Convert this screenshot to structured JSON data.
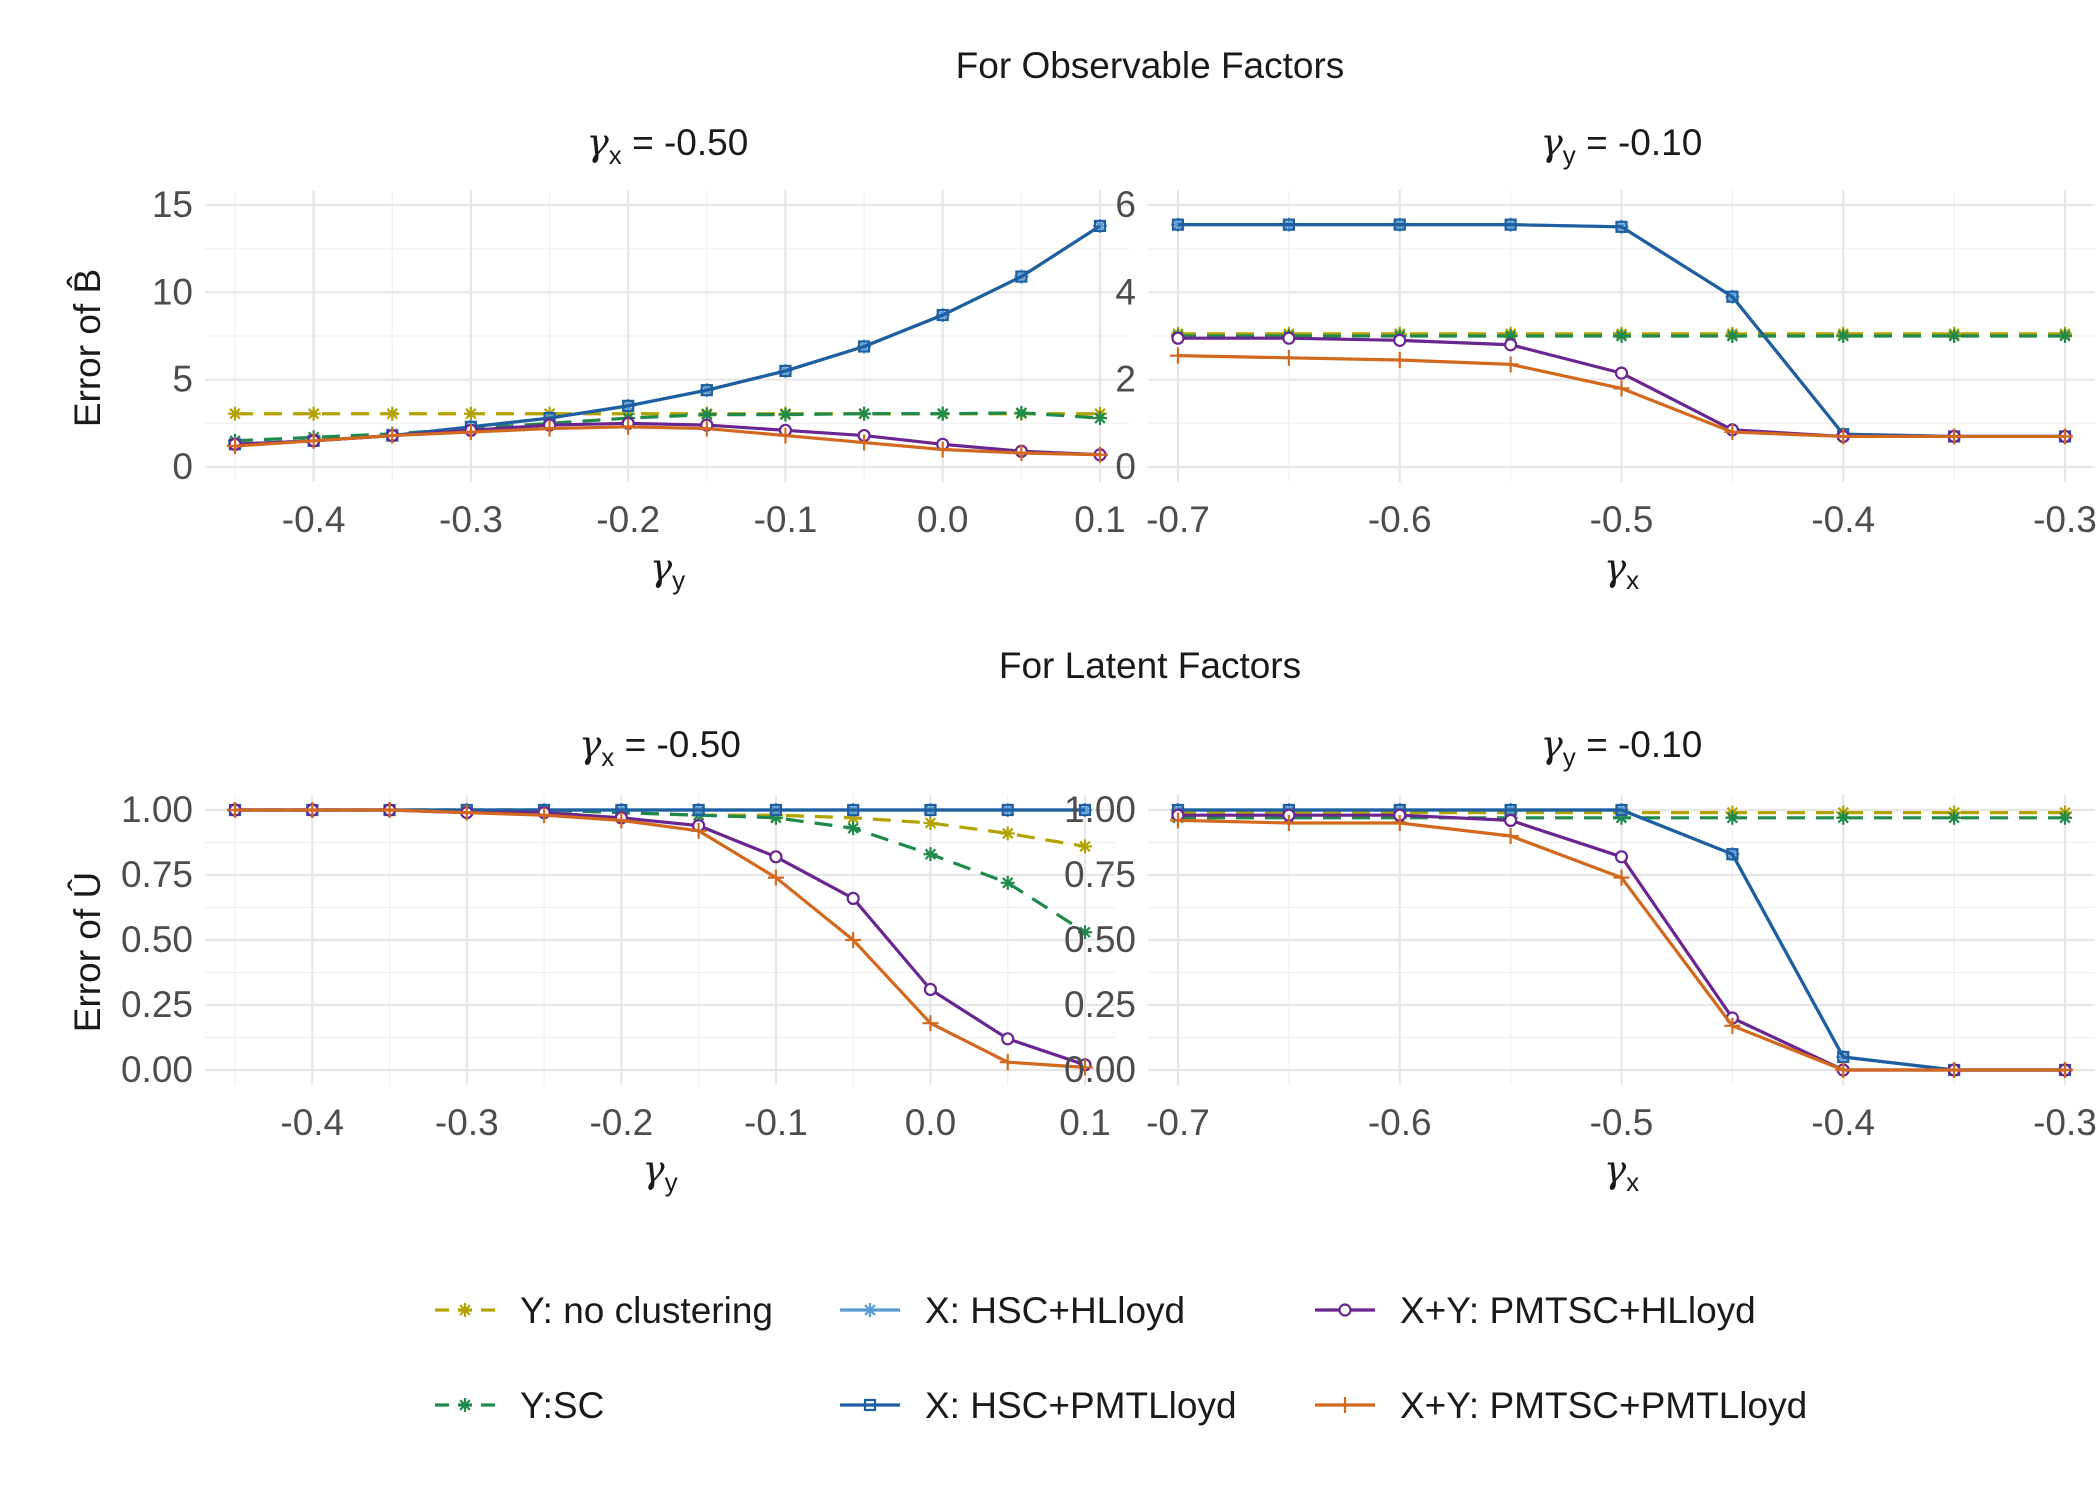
{
  "sections": [
    {
      "title": "For Observable Factors"
    },
    {
      "title": "For Latent Factors"
    }
  ],
  "colors": {
    "Y: no clustering": "#b2a300",
    "Y:SC": "#1f8a4c",
    "X: HSC+HLloyd": "#5b9bd5",
    "X: HSC+PMTLloyd": "#1f5fa0",
    "X+Y: PMTSC+HLloyd": "#6a2690",
    "X+Y: PMTSC+PMTLloyd": "#d2691e"
  },
  "legend": [
    {
      "label": "Y: no clustering",
      "dash": true,
      "marker": "asterisk"
    },
    {
      "label": "Y:SC",
      "dash": true,
      "marker": "asterisk"
    },
    {
      "label": "X: HSC+HLloyd",
      "dash": false,
      "marker": "asterisk"
    },
    {
      "label": "X: HSC+PMTLloyd",
      "dash": false,
      "marker": "square"
    },
    {
      "label": "X+Y: PMTSC+HLloyd",
      "dash": false,
      "marker": "circle"
    },
    {
      "label": "X+Y: PMTSC+PMTLloyd",
      "dash": false,
      "marker": "plus"
    }
  ],
  "chart_data": [
    {
      "type": "line",
      "title_symbol": "γ",
      "title_sub": "x",
      "title_value": "= -0.50",
      "xlabel_symbol": "γ",
      "xlabel_sub": "y",
      "ylabel": "Error of B̂",
      "x": [
        -0.45,
        -0.4,
        -0.35,
        -0.3,
        -0.25,
        -0.2,
        -0.15,
        -0.1,
        -0.05,
        0.0,
        0.05,
        0.1
      ],
      "xlim": [
        -0.45,
        0.1
      ],
      "xticks": [
        -0.4,
        -0.3,
        -0.2,
        -0.1,
        0.0,
        0.1
      ],
      "xtick_labels": [
        "-0.4",
        "-0.3",
        "-0.2",
        "-0.1",
        "0.0",
        "0.1"
      ],
      "ylim": [
        0,
        15
      ],
      "yticks": [
        0,
        5,
        10,
        15
      ],
      "ytick_labels": [
        "0",
        "5",
        "10",
        "15"
      ],
      "series": [
        {
          "name": "Y: no clustering",
          "values": [
            3.05,
            3.05,
            3.05,
            3.05,
            3.05,
            3.05,
            3.05,
            3.05,
            3.05,
            3.05,
            3.05,
            3.05
          ]
        },
        {
          "name": "Y:SC",
          "values": [
            1.5,
            1.7,
            1.9,
            2.2,
            2.5,
            2.8,
            3.0,
            3.0,
            3.05,
            3.05,
            3.1,
            2.8
          ]
        },
        {
          "name": "X: HSC+HLloyd",
          "values": [
            1.3,
            1.5,
            1.8,
            2.3,
            2.8,
            3.5,
            4.4,
            5.5,
            6.9,
            8.7,
            10.9,
            13.8
          ]
        },
        {
          "name": "X: HSC+PMTLloyd",
          "values": [
            1.3,
            1.5,
            1.8,
            2.3,
            2.8,
            3.5,
            4.4,
            5.5,
            6.9,
            8.7,
            10.9,
            13.8
          ]
        },
        {
          "name": "X+Y: PMTSC+HLloyd",
          "values": [
            1.3,
            1.5,
            1.8,
            2.1,
            2.4,
            2.5,
            2.4,
            2.1,
            1.8,
            1.3,
            0.9,
            0.7
          ]
        },
        {
          "name": "X+Y: PMTSC+PMTLloyd",
          "values": [
            1.2,
            1.5,
            1.8,
            2.0,
            2.2,
            2.3,
            2.2,
            1.8,
            1.4,
            1.0,
            0.8,
            0.7
          ]
        }
      ]
    },
    {
      "type": "line",
      "title_symbol": "γ",
      "title_sub": "y",
      "title_value": "= -0.10",
      "xlabel_symbol": "γ",
      "xlabel_sub": "x",
      "ylabel": "",
      "x": [
        -0.7,
        -0.65,
        -0.6,
        -0.55,
        -0.5,
        -0.45,
        -0.4,
        -0.35,
        -0.3
      ],
      "xlim": [
        -0.7,
        -0.3
      ],
      "xticks": [
        -0.7,
        -0.6,
        -0.5,
        -0.4,
        -0.3
      ],
      "xtick_labels": [
        "-0.7",
        "-0.6",
        "-0.5",
        "-0.4",
        "-0.3"
      ],
      "ylim": [
        0,
        6
      ],
      "yticks": [
        0,
        2,
        4,
        6
      ],
      "ytick_labels": [
        "0",
        "2",
        "4",
        "6"
      ],
      "series": [
        {
          "name": "Y: no clustering",
          "values": [
            3.05,
            3.05,
            3.05,
            3.05,
            3.05,
            3.05,
            3.05,
            3.05,
            3.05
          ]
        },
        {
          "name": "Y:SC",
          "values": [
            3.0,
            3.0,
            3.0,
            3.0,
            3.0,
            3.0,
            3.0,
            3.0,
            3.0
          ]
        },
        {
          "name": "X: HSC+HLloyd",
          "values": [
            5.55,
            5.55,
            5.55,
            5.55,
            5.5,
            3.9,
            0.75,
            0.7,
            0.7
          ]
        },
        {
          "name": "X: HSC+PMTLloyd",
          "values": [
            5.55,
            5.55,
            5.55,
            5.55,
            5.5,
            3.9,
            0.75,
            0.7,
            0.7
          ]
        },
        {
          "name": "X+Y: PMTSC+HLloyd",
          "values": [
            2.95,
            2.95,
            2.9,
            2.8,
            2.15,
            0.85,
            0.7,
            0.7,
            0.7
          ]
        },
        {
          "name": "X+Y: PMTSC+PMTLloyd",
          "values": [
            2.55,
            2.5,
            2.45,
            2.35,
            1.8,
            0.8,
            0.7,
            0.7,
            0.7
          ]
        }
      ]
    },
    {
      "type": "line",
      "title_symbol": "γ",
      "title_sub": "x",
      "title_value": "= -0.50",
      "xlabel_symbol": "γ",
      "xlabel_sub": "y",
      "ylabel": "Error of Û",
      "x": [
        -0.45,
        -0.4,
        -0.35,
        -0.3,
        -0.25,
        -0.2,
        -0.15,
        -0.1,
        -0.05,
        0.0,
        0.05,
        0.1
      ],
      "xlim": [
        -0.45,
        0.1
      ],
      "xticks": [
        -0.4,
        -0.3,
        -0.2,
        -0.1,
        0.0,
        0.1
      ],
      "xtick_labels": [
        "-0.4",
        "-0.3",
        "-0.2",
        "-0.1",
        "0.0",
        "0.1"
      ],
      "ylim": [
        0,
        1
      ],
      "yticks": [
        0,
        0.25,
        0.5,
        0.75,
        1.0
      ],
      "ytick_labels": [
        "0.00",
        "0.25",
        "0.50",
        "0.75",
        "1.00"
      ],
      "series": [
        {
          "name": "Y: no clustering",
          "values": [
            1.0,
            1.0,
            1.0,
            1.0,
            1.0,
            0.99,
            0.98,
            0.98,
            0.97,
            0.95,
            0.91,
            0.86
          ]
        },
        {
          "name": "Y:SC",
          "values": [
            1.0,
            1.0,
            1.0,
            1.0,
            1.0,
            0.99,
            0.98,
            0.97,
            0.93,
            0.83,
            0.72,
            0.53
          ]
        },
        {
          "name": "X: HSC+HLloyd",
          "values": [
            1.0,
            1.0,
            1.0,
            1.0,
            1.0,
            1.0,
            1.0,
            1.0,
            1.0,
            1.0,
            1.0,
            1.0
          ]
        },
        {
          "name": "X: HSC+PMTLloyd",
          "values": [
            1.0,
            1.0,
            1.0,
            1.0,
            1.0,
            1.0,
            1.0,
            1.0,
            1.0,
            1.0,
            1.0,
            1.0
          ]
        },
        {
          "name": "X+Y: PMTSC+HLloyd",
          "values": [
            1.0,
            1.0,
            1.0,
            0.99,
            0.99,
            0.97,
            0.94,
            0.82,
            0.66,
            0.31,
            0.12,
            0.02
          ]
        },
        {
          "name": "X+Y: PMTSC+PMTLloyd",
          "values": [
            1.0,
            1.0,
            1.0,
            0.99,
            0.98,
            0.96,
            0.92,
            0.74,
            0.5,
            0.18,
            0.03,
            0.01
          ]
        }
      ]
    },
    {
      "type": "line",
      "title_symbol": "γ",
      "title_sub": "y",
      "title_value": "= -0.10",
      "xlabel_symbol": "γ",
      "xlabel_sub": "x",
      "ylabel": "",
      "x": [
        -0.7,
        -0.65,
        -0.6,
        -0.55,
        -0.5,
        -0.45,
        -0.4,
        -0.35,
        -0.3
      ],
      "xlim": [
        -0.7,
        -0.3
      ],
      "xticks": [
        -0.7,
        -0.6,
        -0.5,
        -0.4,
        -0.3
      ],
      "xtick_labels": [
        "-0.7",
        "-0.6",
        "-0.5",
        "-0.4",
        "-0.3"
      ],
      "ylim": [
        0,
        1
      ],
      "yticks": [
        0,
        0.25,
        0.5,
        0.75,
        1.0
      ],
      "ytick_labels": [
        "0.00",
        "0.25",
        "0.50",
        "0.75",
        "1.00"
      ],
      "series": [
        {
          "name": "Y: no clustering",
          "values": [
            0.99,
            0.99,
            0.99,
            0.99,
            0.99,
            0.99,
            0.99,
            0.99,
            0.99
          ]
        },
        {
          "name": "Y:SC",
          "values": [
            0.97,
            0.97,
            0.97,
            0.97,
            0.97,
            0.97,
            0.97,
            0.97,
            0.97
          ]
        },
        {
          "name": "X: HSC+HLloyd",
          "values": [
            1.0,
            1.0,
            1.0,
            1.0,
            1.0,
            0.83,
            0.05,
            0.0,
            0.0
          ]
        },
        {
          "name": "X: HSC+PMTLloyd",
          "values": [
            1.0,
            1.0,
            1.0,
            1.0,
            1.0,
            0.83,
            0.05,
            0.0,
            0.0
          ]
        },
        {
          "name": "X+Y: PMTSC+HLloyd",
          "values": [
            0.98,
            0.98,
            0.98,
            0.96,
            0.82,
            0.2,
            0.0,
            0.0,
            0.0
          ]
        },
        {
          "name": "X+Y: PMTSC+PMTLloyd",
          "values": [
            0.96,
            0.95,
            0.95,
            0.9,
            0.74,
            0.17,
            0.0,
            0.0,
            0.0
          ]
        }
      ]
    }
  ]
}
